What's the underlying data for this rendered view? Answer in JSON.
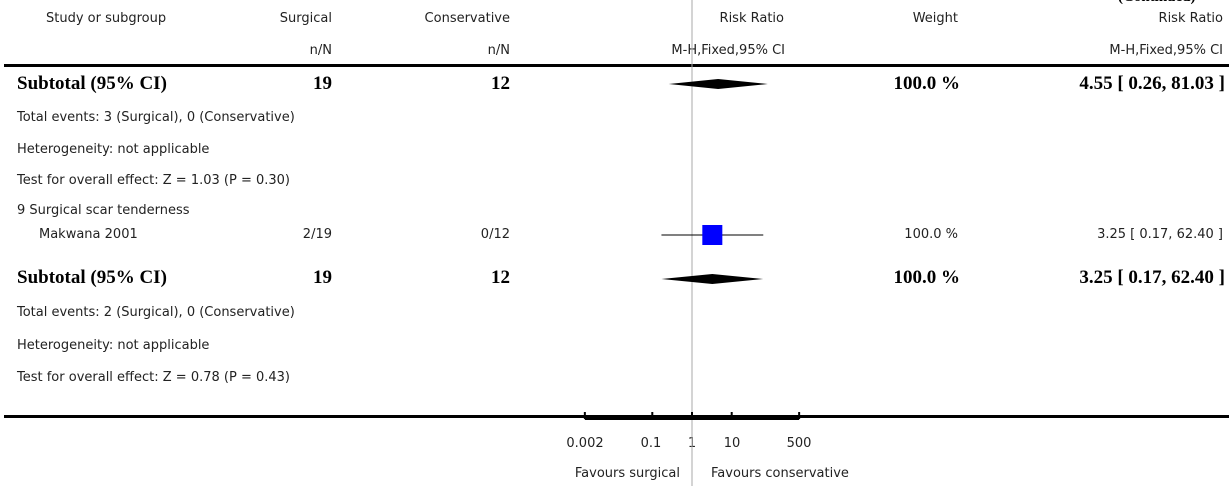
{
  "header": {
    "corner_fragment": "(Continued)",
    "col_study": "Study or subgroup",
    "col_surgical": "Surgical",
    "col_conservative": "Conservative",
    "col_rr": "Risk Ratio",
    "col_weight": "Weight",
    "col_rr2": "Risk Ratio",
    "sub_surgical": "n/N",
    "sub_conservative": "n/N",
    "sub_rr": "M-H,Fixed,95% CI",
    "sub_rr2": "M-H,Fixed,95% CI"
  },
  "subtotal1": {
    "label": "Subtotal (95% CI)",
    "surgical": "19",
    "conservative": "12",
    "weight": "100.0 %",
    "ci": "4.55 [ 0.26, 81.03 ]",
    "total_events": "Total events: 3 (Surgical), 0 (Conservative)",
    "heterogeneity": "Heterogeneity: not applicable",
    "overall_effect": "Test for overall effect: Z = 1.03 (P = 0.30)"
  },
  "group9": {
    "title": "9 Surgical scar tenderness",
    "study": {
      "name": "Makwana 2001",
      "surgical": "2/19",
      "conservative": "0/12",
      "weight": "100.0 %",
      "ci": "3.25 [ 0.17, 62.40 ]"
    }
  },
  "subtotal2": {
    "label": "Subtotal (95% CI)",
    "surgical": "19",
    "conservative": "12",
    "weight": "100.0 %",
    "ci": "3.25 [ 0.17, 62.40 ]",
    "total_events": "Total events: 2 (Surgical), 0 (Conservative)",
    "heterogeneity": "Heterogeneity: not applicable",
    "overall_effect": "Test for overall effect: Z = 0.78 (P = 0.43)"
  },
  "axis": {
    "ticks": [
      "0.002",
      "0.1",
      "1",
      "10",
      "500"
    ],
    "favours_left": "Favours surgical",
    "favours_right": "Favours conservative"
  },
  "colors": {
    "study_square": "#0000ff",
    "diamond": "#000000",
    "ref_line": "#aaaaaa"
  },
  "chart_data": {
    "type": "forest",
    "scale": "log",
    "xlim": [
      0.002,
      500
    ],
    "x_ticks": [
      0.002,
      0.1,
      1,
      10,
      500
    ],
    "reference_line": 1,
    "rows": [
      {
        "label": "Subtotal (95% CI)",
        "kind": "diamond",
        "rr": 4.55,
        "lo": 0.26,
        "hi": 81.03,
        "weight": 100.0
      },
      {
        "label": "Makwana 2001",
        "kind": "study",
        "rr": 3.25,
        "lo": 0.17,
        "hi": 62.4,
        "weight": 100.0
      },
      {
        "label": "Subtotal (95% CI)",
        "kind": "diamond",
        "rr": 3.25,
        "lo": 0.17,
        "hi": 62.4,
        "weight": 100.0
      }
    ]
  }
}
